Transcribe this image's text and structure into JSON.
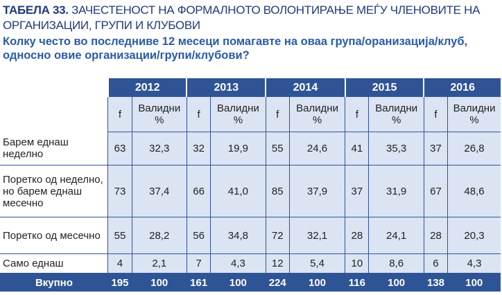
{
  "header": {
    "label": "ТАБЕЛА 33.",
    "title": "ЗАЧЕСТЕНОСТ НА ФОРМАЛНОТО ВОЛОНТИРАЊЕ МЕЃУ ЧЛЕНОВИТЕ НА ОРГАНИЗАЦИИ, ГРУПИ И КЛУБОВИ",
    "question": "Колку често во последниве 12 месеци  помагавте на оваа група/оранизација/клуб, односно овие организации/групи/клубови?"
  },
  "table": {
    "years": [
      "2012",
      "2013",
      "2014",
      "2015",
      "2016"
    ],
    "subheaders": [
      "f",
      "Валидни %"
    ],
    "rows": [
      [
        "Барем еднаш неделно",
        "63",
        "32,3",
        "32",
        "19,9",
        "55",
        "24,6",
        "41",
        "35,3",
        "37",
        "26,8"
      ],
      [
        "Поретко од неделно, но барем еднаш месечно",
        "73",
        "37,4",
        "66",
        "41,0",
        "85",
        "37,9",
        "37",
        "31,9",
        "67",
        "48,6"
      ],
      [
        "Поретко од месечно",
        "55",
        "28,2",
        "56",
        "34,8",
        "72",
        "32,1",
        "28",
        "24,1",
        "28",
        "20,3"
      ],
      [
        "Само еднаш",
        "4",
        "2,1",
        "7",
        "4,3",
        "12",
        "5,4",
        "10",
        "8,6",
        "6",
        "4,3"
      ]
    ],
    "total": [
      "Вкупно",
      "195",
      "100",
      "161",
      "100",
      "224",
      "100",
      "116",
      "100",
      "138",
      "100"
    ]
  }
}
